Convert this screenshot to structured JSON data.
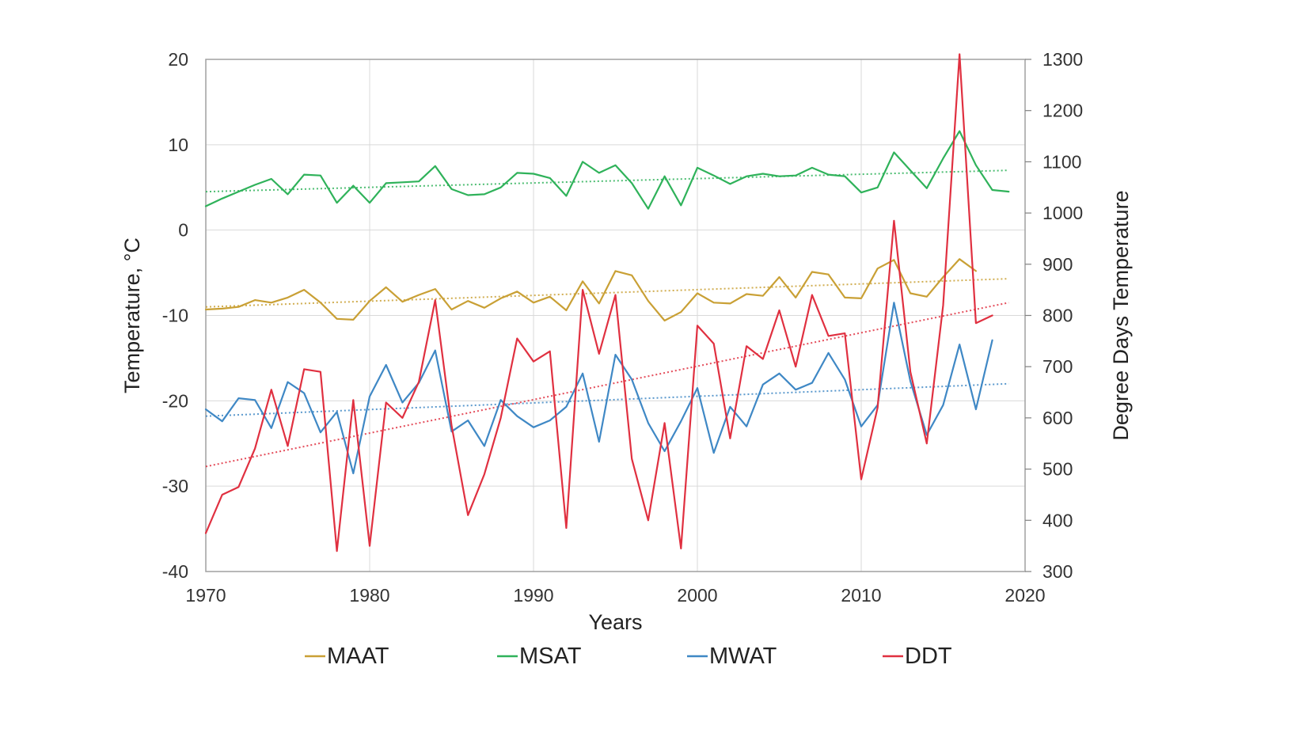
{
  "chart_data": {
    "type": "line",
    "xlabel": "Years",
    "ylabel_left": "Temperature, °C",
    "ylabel_right": "Degree Days Temperature",
    "xlim": [
      1970,
      2020
    ],
    "ylim_left": [
      -40,
      20
    ],
    "ylim_right": [
      300,
      1300
    ],
    "x_ticks": [
      "1970",
      "1980",
      "1990",
      "2000",
      "2010",
      "2020"
    ],
    "y_ticks_left": [
      "20",
      "10",
      "0",
      "-10",
      "-20",
      "-30",
      "-40"
    ],
    "y_ticks_right": [
      "1300",
      "1200",
      "1100",
      "1000",
      "900",
      "800",
      "700",
      "600",
      "500",
      "400",
      "300"
    ],
    "grid": true,
    "legend_position": "bottom",
    "years": [
      1970,
      1971,
      1972,
      1973,
      1974,
      1975,
      1976,
      1977,
      1978,
      1979,
      1980,
      1981,
      1982,
      1983,
      1984,
      1985,
      1986,
      1987,
      1988,
      1989,
      1990,
      1991,
      1992,
      1993,
      1994,
      1995,
      1996,
      1997,
      1998,
      1999,
      2000,
      2001,
      2002,
      2003,
      2004,
      2005,
      2006,
      2007,
      2008,
      2009,
      2010,
      2011,
      2012,
      2013,
      2014,
      2015,
      2016,
      2017,
      2018,
      2019
    ],
    "series": [
      {
        "name": "MAAT",
        "axis": "left",
        "color": "#c9a035",
        "values": [
          -9.3,
          -9.2,
          -9.0,
          -8.2,
          -8.5,
          -7.9,
          -7.0,
          -8.5,
          -10.4,
          -10.5,
          -8.3,
          -6.7,
          -8.4,
          -7.6,
          -6.9,
          -9.3,
          -8.3,
          -9.1,
          -8.0,
          -7.2,
          -8.5,
          -7.8,
          -9.4,
          -6.0,
          -8.6,
          -4.8,
          -5.3,
          -8.3,
          -10.6,
          -9.6,
          -7.4,
          -8.5,
          -8.6,
          -7.5,
          -7.7,
          -5.5,
          -7.9,
          -4.9,
          -5.2,
          -7.9,
          -8.0,
          -4.5,
          -3.5,
          -7.4,
          -7.8,
          -5.5,
          -3.4,
          -4.8,
          null,
          null
        ]
      },
      {
        "name": "MSAT",
        "axis": "left",
        "color": "#2fb25a",
        "values": [
          2.8,
          3.7,
          4.5,
          5.3,
          6.0,
          4.2,
          6.5,
          6.4,
          3.2,
          5.2,
          3.2,
          5.5,
          5.6,
          5.7,
          7.5,
          4.8,
          4.1,
          4.2,
          5.0,
          6.7,
          6.6,
          6.1,
          4.0,
          8.0,
          6.7,
          7.6,
          5.5,
          2.5,
          6.3,
          2.9,
          7.3,
          6.4,
          5.4,
          6.3,
          6.6,
          6.3,
          6.4,
          7.3,
          6.5,
          6.3,
          4.4,
          5.0,
          9.1,
          7.0,
          4.9,
          8.4,
          11.6,
          7.6,
          4.7,
          4.5
        ]
      },
      {
        "name": "MWAT",
        "axis": "left",
        "color": "#3f88c5",
        "values": [
          -21.0,
          -22.4,
          -19.7,
          -19.9,
          -23.2,
          -17.8,
          -19.1,
          -23.7,
          -21.3,
          -28.5,
          -19.5,
          -15.8,
          -20.2,
          -17.9,
          -14.1,
          -23.6,
          -22.3,
          -25.3,
          -19.9,
          -21.8,
          -23.1,
          -22.3,
          -20.7,
          -16.8,
          -24.8,
          -14.6,
          -17.5,
          -22.6,
          -25.9,
          -22.4,
          -18.5,
          -26.1,
          -20.7,
          -23.0,
          -18.1,
          -16.8,
          -18.7,
          -17.9,
          -14.4,
          -17.5,
          -23.0,
          -20.5,
          -8.5,
          -17.7,
          -24.0,
          -20.5,
          -13.4,
          -21.0,
          -12.9,
          null
        ]
      },
      {
        "name": "DDT",
        "axis": "right",
        "color": "#e03040",
        "values": [
          375,
          450,
          465,
          540,
          655,
          545,
          695,
          690,
          340,
          635,
          350,
          630,
          600,
          670,
          830,
          585,
          410,
          490,
          600,
          755,
          710,
          730,
          385,
          850,
          725,
          840,
          520,
          400,
          590,
          345,
          780,
          745,
          560,
          740,
          715,
          810,
          700,
          840,
          760,
          765,
          480,
          620,
          985,
          690,
          550,
          820,
          1310,
          785,
          800,
          null
        ]
      }
    ],
    "trendlines": [
      {
        "series": "MAAT",
        "axis": "left",
        "start": [
          1970,
          -9.0
        ],
        "end": [
          2019,
          -5.7
        ]
      },
      {
        "series": "MSAT",
        "axis": "left",
        "start": [
          1970,
          4.5
        ],
        "end": [
          2019,
          7.0
        ]
      },
      {
        "series": "MWAT",
        "axis": "left",
        "start": [
          1970,
          -21.8
        ],
        "end": [
          2019,
          -18.0
        ]
      },
      {
        "series": "DDT",
        "axis": "right",
        "start": [
          1970,
          505
        ],
        "end": [
          2019,
          825
        ]
      }
    ]
  }
}
